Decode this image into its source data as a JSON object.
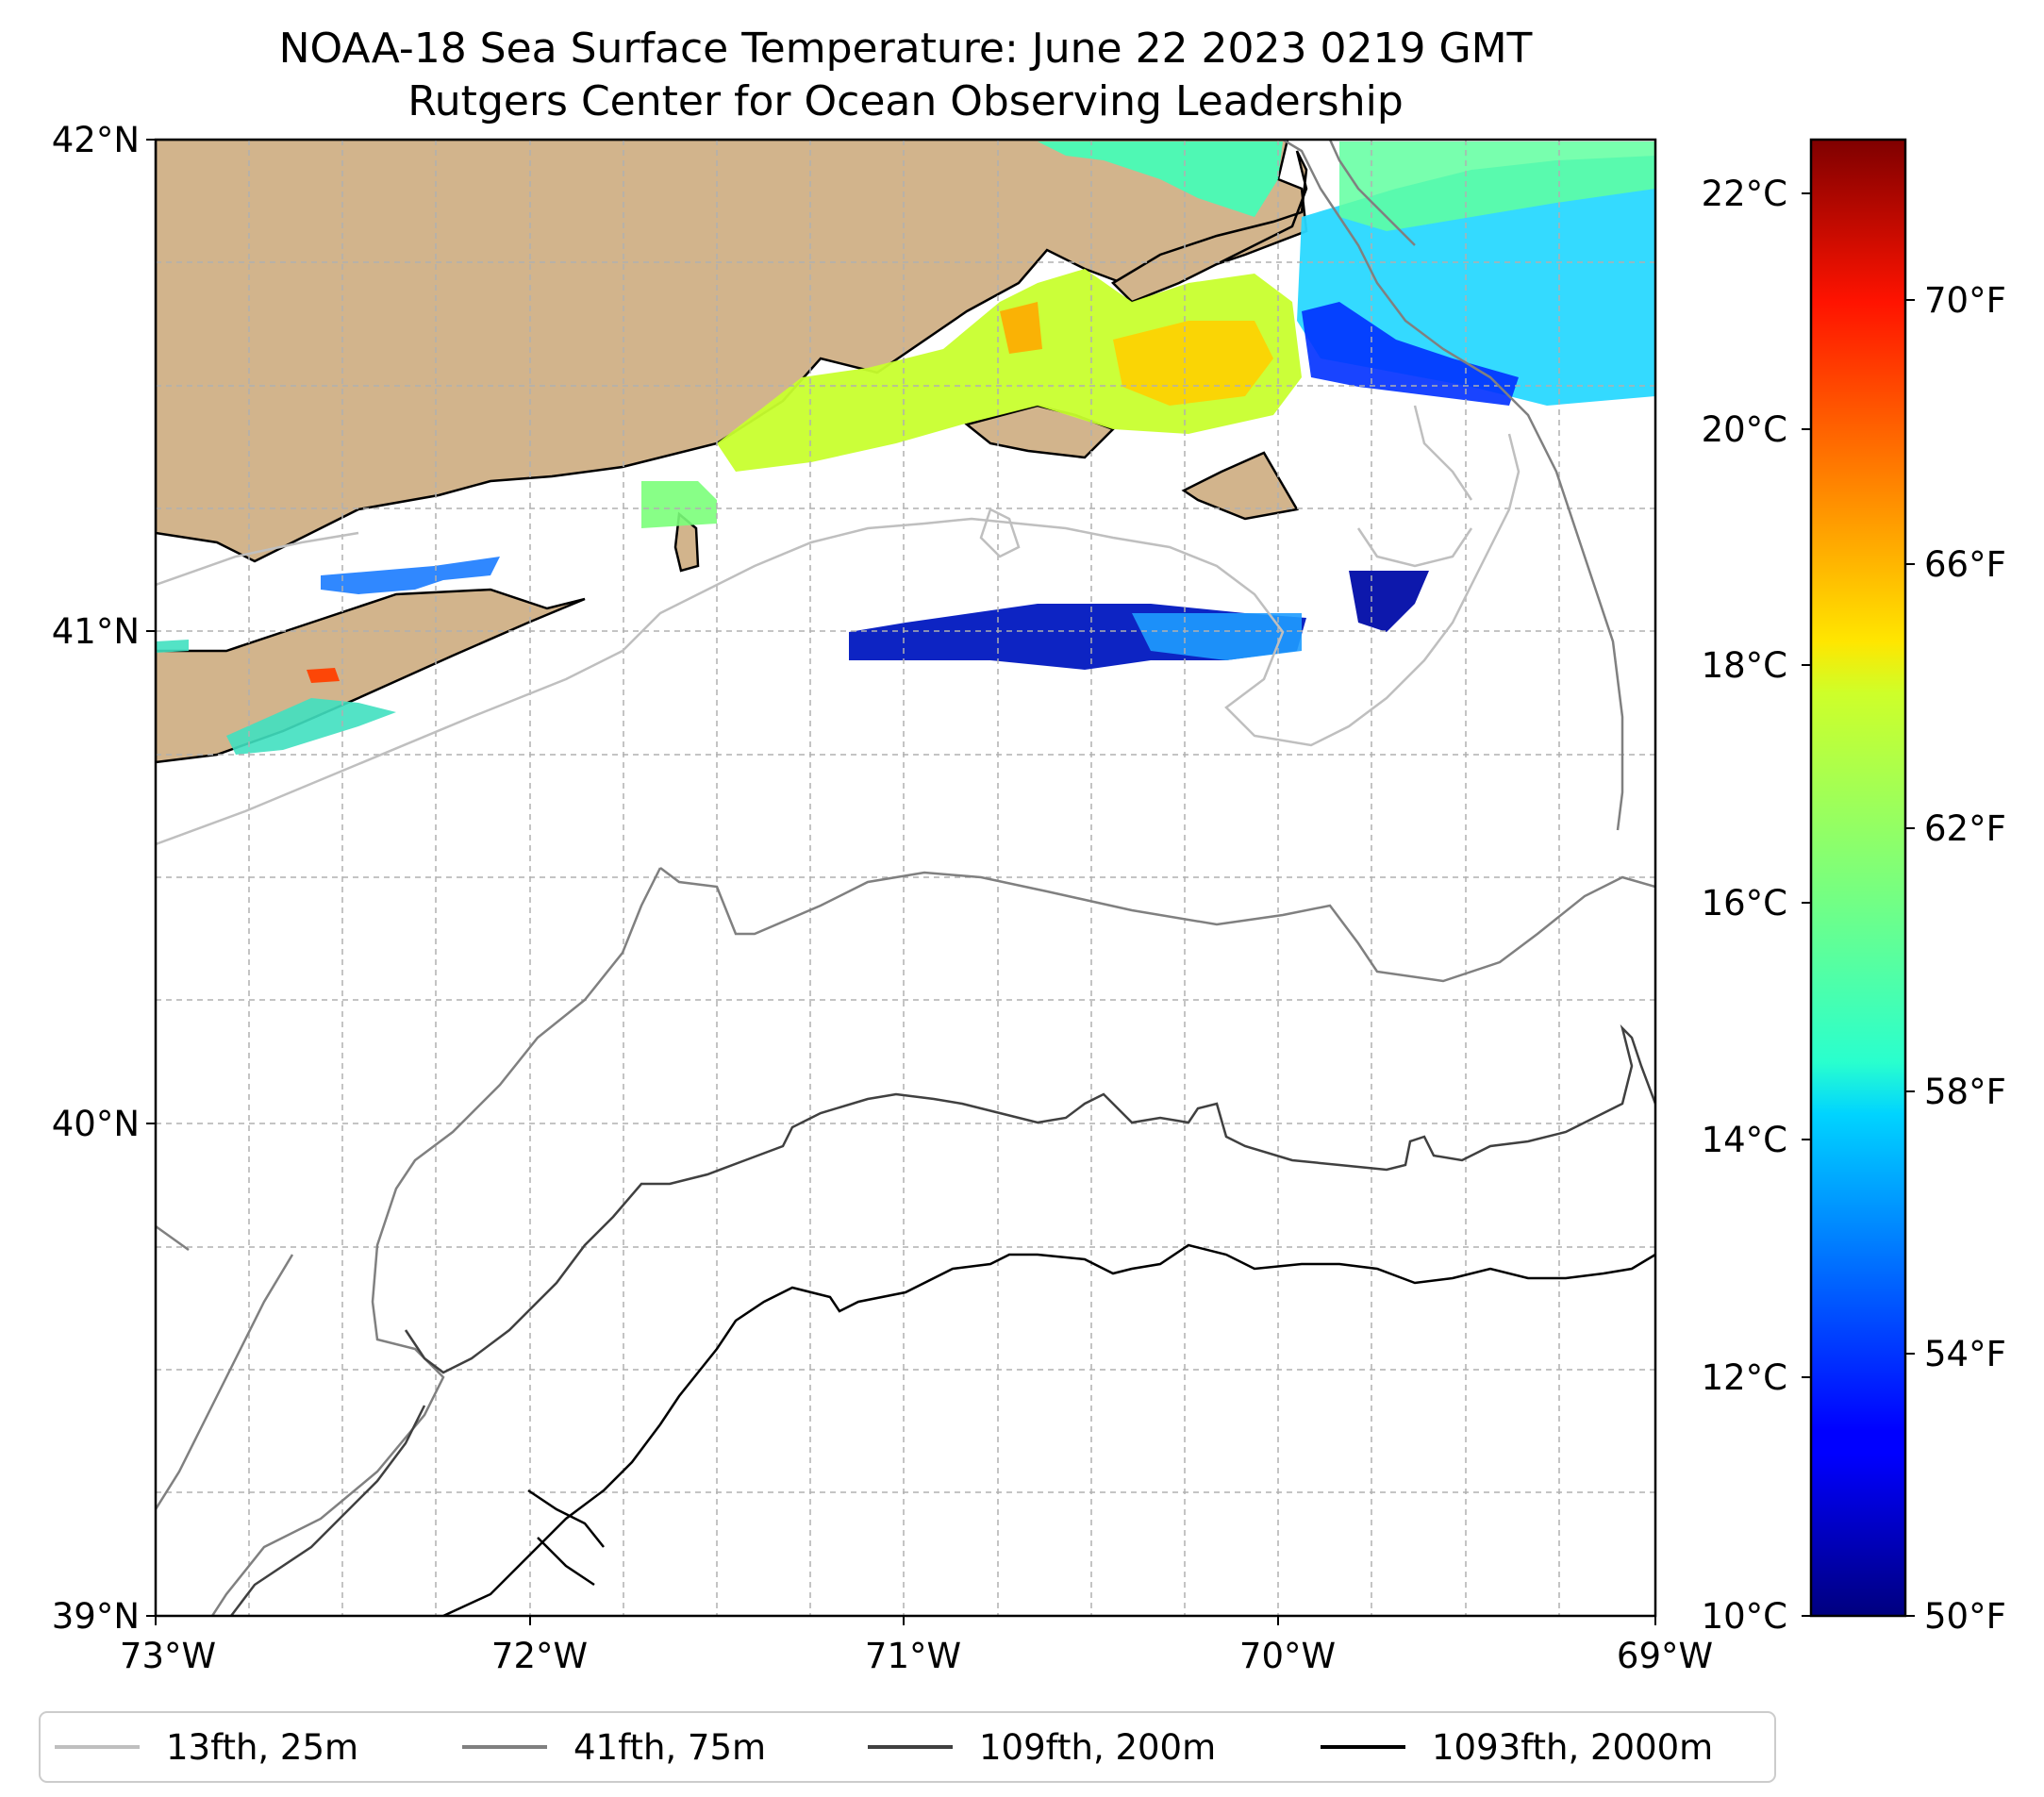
{
  "title": {
    "line1": "NOAA-18 Sea Surface Temperature: June 22 2023 0219 GMT",
    "line2": "Rutgers Center for Ocean Observing Leadership"
  },
  "map": {
    "lon_range": [
      -73,
      -69
    ],
    "lat_range": [
      39,
      42
    ],
    "land_color": "#D2B48C",
    "x_ticks": [
      {
        "value": -73,
        "label": "73°W"
      },
      {
        "value": -72,
        "label": "72°W"
      },
      {
        "value": -71,
        "label": "71°W"
      },
      {
        "value": -70,
        "label": "70°W"
      },
      {
        "value": -69,
        "label": "69°W"
      }
    ],
    "y_ticks": [
      {
        "value": 42,
        "label": "42°N"
      },
      {
        "value": 41,
        "label": "41°N"
      },
      {
        "value": 40,
        "label": "40°N"
      },
      {
        "value": 39,
        "label": "39°N"
      }
    ],
    "grid": true
  },
  "colorbar": {
    "colormap": "jet",
    "range_c": [
      10,
      22.5
    ],
    "celsius_ticks": [
      {
        "value": 22,
        "label": "22°C"
      },
      {
        "value": 20,
        "label": "20°C"
      },
      {
        "value": 18,
        "label": "18°C"
      },
      {
        "value": 16,
        "label": "16°C"
      },
      {
        "value": 14,
        "label": "14°C"
      },
      {
        "value": 12,
        "label": "12°C"
      },
      {
        "value": 10,
        "label": "10°C"
      }
    ],
    "fahrenheit_ticks": [
      {
        "value": 70,
        "label": "70°F"
      },
      {
        "value": 66,
        "label": "66°F"
      },
      {
        "value": 62,
        "label": "62°F"
      },
      {
        "value": 58,
        "label": "58°F"
      },
      {
        "value": 54,
        "label": "54°F"
      },
      {
        "value": 50,
        "label": "50°F"
      }
    ]
  },
  "legend": {
    "items": [
      {
        "label": "13fth, 25m",
        "color": "#bfbfbf"
      },
      {
        "label": "41fth, 75m",
        "color": "#808080"
      },
      {
        "label": "109fth, 200m",
        "color": "#404040"
      },
      {
        "label": "1093fth, 2000m",
        "color": "#000000"
      }
    ]
  }
}
